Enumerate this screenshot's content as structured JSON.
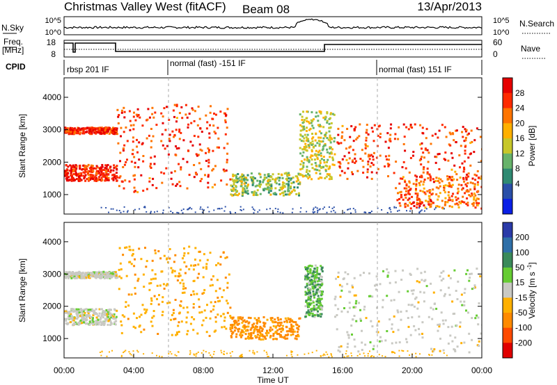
{
  "header": {
    "title": "Christmas Valley West (fitACF)",
    "beam": "Beam 08",
    "date": "13/Apr/2013"
  },
  "panels": {
    "noise": {
      "left_label": "N.Sky",
      "left_ticks": [
        "10^5",
        "10^0"
      ],
      "right_ticks": [
        "10^5",
        "10^0"
      ],
      "right_label": "N.Search"
    },
    "freq": {
      "left_label_line1": "Freq.",
      "left_label_line2": "[MHz]",
      "left_ticks": [
        "18",
        "8"
      ],
      "right_ticks": [
        "60",
        "0"
      ],
      "right_label": "Nave"
    },
    "cpid": {
      "label": "CPID",
      "segments": [
        "rbsp 201 IF",
        "normal (fast) -151 IF",
        "normal (fast) 151 IF"
      ]
    }
  },
  "chart_data": [
    {
      "type": "heatmap",
      "name": "power",
      "ylabel": "Slant Range [km]",
      "yticks": [
        1000,
        2000,
        3000,
        4000
      ],
      "ylim": [
        400,
        4600
      ],
      "colorbar": {
        "label": "Power [dB]",
        "ticks": [
          "28",
          "24",
          "20",
          "16",
          "12",
          "8",
          "4"
        ],
        "colors": [
          "#e60000",
          "#ff2a00",
          "#ff7400",
          "#ffb000",
          "#c7c72a",
          "#67b36b",
          "#2f8a72",
          "#2a4fa8",
          "#0a1fe6"
        ]
      },
      "features": [
        {
          "x_hours": [
            0,
            3
          ],
          "y_km": [
            2900,
            3100
          ],
          "level_dB": 28
        },
        {
          "x_hours": [
            0,
            3
          ],
          "y_km": [
            1450,
            1950
          ],
          "level_dB": 28
        },
        {
          "x_hours": [
            3,
            9.5
          ],
          "y_km": [
            1100,
            3800
          ],
          "level_dB": 26
        },
        {
          "x_hours": [
            9.5,
            13.5
          ],
          "y_km": [
            1000,
            1700
          ],
          "level_dB": 14
        },
        {
          "x_hours": [
            13.5,
            15.5
          ],
          "y_km": [
            1500,
            3600
          ],
          "level_dB": 16
        },
        {
          "x_hours": [
            15.5,
            24
          ],
          "y_km": [
            1500,
            3200
          ],
          "level_dB": 26
        },
        {
          "x_hours": [
            19,
            24
          ],
          "y_km": [
            600,
            1600
          ],
          "level_dB": 24
        }
      ]
    },
    {
      "type": "heatmap",
      "name": "velocity",
      "ylabel": "Slant Range [km]",
      "yticks": [
        1000,
        2000,
        3000,
        4000
      ],
      "ylim": [
        400,
        4600
      ],
      "colorbar": {
        "label": "Velocity [m s^-1]",
        "ticks": [
          "200",
          "100",
          "50",
          "15",
          "-15",
          "-50",
          "-100",
          "-200"
        ],
        "colors": [
          "#2a3aa8",
          "#2f6fa8",
          "#3a8a5a",
          "#66cc33",
          "#c9c9c3",
          "#ffb000",
          "#ff8a00",
          "#ff4a00",
          "#e00000"
        ]
      },
      "features": [
        {
          "x_hours": [
            0,
            3
          ],
          "y_km": [
            2900,
            3100
          ],
          "velocity": 0
        },
        {
          "x_hours": [
            0,
            3
          ],
          "y_km": [
            1450,
            1950
          ],
          "velocity": 0
        },
        {
          "x_hours": [
            3,
            9.5
          ],
          "y_km": [
            1100,
            3900
          ],
          "velocity": -40
        },
        {
          "x_hours": [
            9.5,
            13.5
          ],
          "y_km": [
            1000,
            1700
          ],
          "velocity": -60
        },
        {
          "x_hours": [
            13.8,
            14.8
          ],
          "y_km": [
            1700,
            3300
          ],
          "velocity": 30
        },
        {
          "x_hours": [
            15.5,
            24
          ],
          "y_km": [
            600,
            3200
          ],
          "velocity": 0
        }
      ]
    }
  ],
  "xaxis": {
    "label": "Time UT",
    "ticks": [
      "00:00",
      "04:00",
      "08:00",
      "12:00",
      "16:00",
      "20:00",
      "00:00"
    ]
  }
}
